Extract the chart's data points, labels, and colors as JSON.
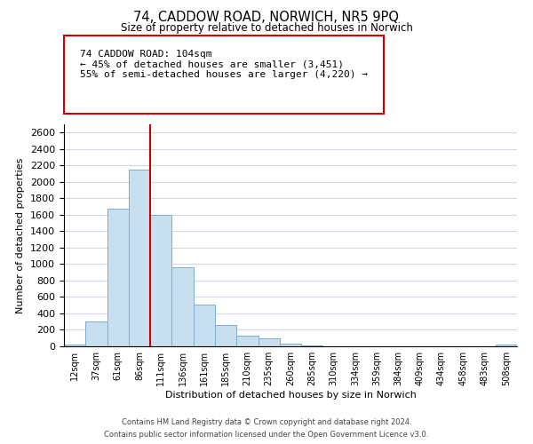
{
  "title": "74, CADDOW ROAD, NORWICH, NR5 9PQ",
  "subtitle": "Size of property relative to detached houses in Norwich",
  "xlabel": "Distribution of detached houses by size in Norwich",
  "ylabel": "Number of detached properties",
  "bin_labels": [
    "12sqm",
    "37sqm",
    "61sqm",
    "86sqm",
    "111sqm",
    "136sqm",
    "161sqm",
    "185sqm",
    "210sqm",
    "235sqm",
    "260sqm",
    "285sqm",
    "310sqm",
    "334sqm",
    "359sqm",
    "384sqm",
    "409sqm",
    "434sqm",
    "458sqm",
    "483sqm",
    "508sqm"
  ],
  "bar_values": [
    20,
    300,
    1670,
    2150,
    1600,
    960,
    510,
    255,
    125,
    95,
    30,
    15,
    5,
    5,
    5,
    5,
    5,
    5,
    5,
    5,
    20
  ],
  "bar_color": "#c8dff0",
  "bar_edge_color": "#7aaecf",
  "property_line_color": "#cc0000",
  "annotation_text": "74 CADDOW ROAD: 104sqm\n← 45% of detached houses are smaller (3,451)\n55% of semi-detached houses are larger (4,220) →",
  "annotation_box_color": "#ffffff",
  "annotation_box_edge": "#cc0000",
  "ylim": [
    0,
    2700
  ],
  "yticks": [
    0,
    200,
    400,
    600,
    800,
    1000,
    1200,
    1400,
    1600,
    1800,
    2000,
    2200,
    2400,
    2600
  ],
  "footnote1": "Contains HM Land Registry data © Crown copyright and database right 2024.",
  "footnote2": "Contains public sector information licensed under the Open Government Licence v3.0.",
  "bg_color": "#ffffff",
  "grid_color": "#d0d8e8"
}
